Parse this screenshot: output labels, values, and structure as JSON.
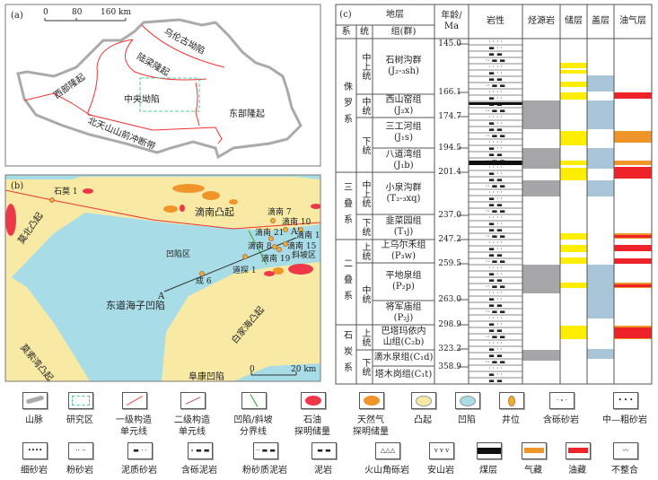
{
  "panel_a": {
    "label": "(a)",
    "scale": [
      "0",
      "80",
      "160 km"
    ],
    "units": [
      "乌伦古坳陷",
      "陆梁隆起",
      "西部隆起",
      "中央坳陷",
      "东部隆起",
      "北天山山前冲断带"
    ]
  },
  "panel_b": {
    "label": "(b)",
    "scale": [
      "0",
      "20 km"
    ],
    "regions": [
      "滴南凸起",
      "莫北凸起",
      "凹陷区",
      "东道海子凹陷",
      "斜坡区",
      "白家海凸起",
      "莫索湾凸起",
      "阜康凹陷"
    ],
    "wells": [
      "石莫 1",
      "滴南 7",
      "滴南 10",
      "滴南 21",
      "滴南 1",
      "滴南 8",
      "滴南 15",
      "滴南 19",
      "道探 1",
      "成 6"
    ],
    "section_ends": [
      "A",
      "A'"
    ]
  },
  "panel_c": {
    "label": "(c)",
    "headers": {
      "strata": "地层",
      "system": "系",
      "series": "统",
      "formation": "组(群)",
      "age": "年龄/Ma",
      "lithology": "岩性",
      "source": "烃源岩",
      "reservoir": "储层",
      "cap": "盖层",
      "pay": "油气层"
    },
    "systems": [
      "侏罗系",
      "三叠系",
      "二叠系",
      "石炭系"
    ],
    "series": [
      "中上统",
      "中统",
      "下统",
      "中上统",
      "下统",
      "上统",
      "中统",
      "上统",
      "下统"
    ],
    "formations": [
      [
        "石树沟群",
        "(J₂-₃sh)"
      ],
      [
        "西山窑组",
        "(J₂x)"
      ],
      [
        "三工河组",
        "(J₁s)"
      ],
      [
        "八道湾组",
        "(J₁b)"
      ],
      [
        "小泉沟群",
        "(T₂-₃xq)"
      ],
      [
        "韭菜园组",
        "(T₁j)"
      ],
      [
        "上乌尔禾组",
        "(P₃w)"
      ],
      [
        "平地泉组",
        "(P₂p)"
      ],
      [
        "将军庙组",
        "(P₂j)"
      ],
      [
        "巴塔玛依内",
        "山组(C₂b)"
      ],
      [
        "滴水泉组(C₁d)",
        ""
      ],
      [
        "塔木岗组(C₁t)",
        ""
      ]
    ],
    "ages": [
      "145.0",
      "166.1",
      "174.7",
      "194.5",
      "201.4",
      "237.0",
      "247.2",
      "259.5",
      "263.0",
      "298.9",
      "323.2",
      "358.9"
    ]
  },
  "colors": {
    "uplift": "#f8eaa5",
    "depression": "#a8dce6",
    "oil": "#ee3848",
    "gas": "#f0952a",
    "reservoir": "#ffee00",
    "source": "#a6a6a8",
    "cap": "#a9c6d8",
    "pay_oil": "#ee2229",
    "fault": "#ee3333"
  },
  "legend": [
    {
      "icon": "mountain-icon",
      "label": "山脉"
    },
    {
      "icon": "study-area-icon",
      "label": "研究区"
    },
    {
      "icon": "primary-unit-line-icon",
      "label": "一级构造\n单元线"
    },
    {
      "icon": "secondary-unit-line-icon",
      "label": "二级构造\n单元线"
    },
    {
      "icon": "slope-boundary-icon",
      "label": "凹陷/斜坡\n分界线"
    },
    {
      "icon": "oil-reserve-icon",
      "label": "石油\n探明储量"
    },
    {
      "icon": "gas-reserve-icon",
      "label": "天然气\n探明储量"
    },
    {
      "icon": "uplift-icon",
      "label": "凸起"
    },
    {
      "icon": "depression-icon",
      "label": "凹陷"
    },
    {
      "icon": "well-icon",
      "label": "井位"
    },
    {
      "icon": "pebbly-sandstone-icon",
      "label": "含砾砂岩"
    },
    {
      "icon": "medium-coarse-sandstone-icon",
      "label": "中—粗砂岩"
    },
    {
      "icon": "fine-sandstone-icon",
      "label": "细砂岩"
    },
    {
      "icon": "siltstone-icon",
      "label": "粉砂岩"
    },
    {
      "icon": "muddy-sandstone-icon",
      "label": "泥质砂岩"
    },
    {
      "icon": "pebbly-mudstone-icon",
      "label": "含砾泥岩"
    },
    {
      "icon": "silty-mudstone-icon",
      "label": "粉砂质泥岩"
    },
    {
      "icon": "mudstone-icon",
      "label": "泥岩"
    },
    {
      "icon": "volcanic-breccia-icon",
      "label": "火山角砾岩"
    },
    {
      "icon": "andesite-icon",
      "label": "安山岩"
    },
    {
      "icon": "coal-icon",
      "label": "煤层"
    },
    {
      "icon": "gas-pool-icon",
      "label": "气藏"
    },
    {
      "icon": "oil-pool-icon",
      "label": "油藏"
    },
    {
      "icon": "unconformity-icon",
      "label": "不整合"
    }
  ]
}
